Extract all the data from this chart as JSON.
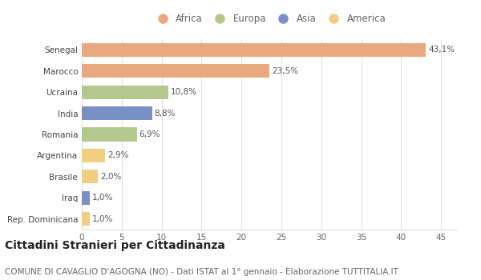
{
  "categories": [
    "Senegal",
    "Marocco",
    "Ucraina",
    "India",
    "Romania",
    "Argentina",
    "Brasile",
    "Iraq",
    "Rep. Dominicana"
  ],
  "values": [
    43.1,
    23.5,
    10.8,
    8.8,
    6.9,
    2.9,
    2.0,
    1.0,
    1.0
  ],
  "labels": [
    "43,1%",
    "23,5%",
    "10,8%",
    "8,8%",
    "6,9%",
    "2,9%",
    "2,0%",
    "1,0%",
    "1,0%"
  ],
  "colors": [
    "#E8A97E",
    "#E8A97E",
    "#B5C98E",
    "#7A8FC4",
    "#B5C98E",
    "#F0D080",
    "#F0D080",
    "#7A8FC4",
    "#F0D080"
  ],
  "legend": {
    "Africa": "#E8A97E",
    "Europa": "#B5C98E",
    "Asia": "#7A8FC4",
    "America": "#F0D080"
  },
  "xlim": [
    0,
    47
  ],
  "xticks": [
    0,
    5,
    10,
    15,
    20,
    25,
    30,
    35,
    40,
    45
  ],
  "title": "Cittadini Stranieri per Cittadinanza",
  "subtitle": "COMUNE DI CAVAGLIO D'AGOGNA (NO) - Dati ISTAT al 1° gennaio - Elaborazione TUTTITALIA.IT",
  "background_color": "#ffffff",
  "grid_color": "#e0e0e0",
  "bar_height": 0.65,
  "title_fontsize": 10,
  "subtitle_fontsize": 7.5,
  "label_fontsize": 7.5,
  "tick_fontsize": 7.5,
  "legend_fontsize": 8.5
}
